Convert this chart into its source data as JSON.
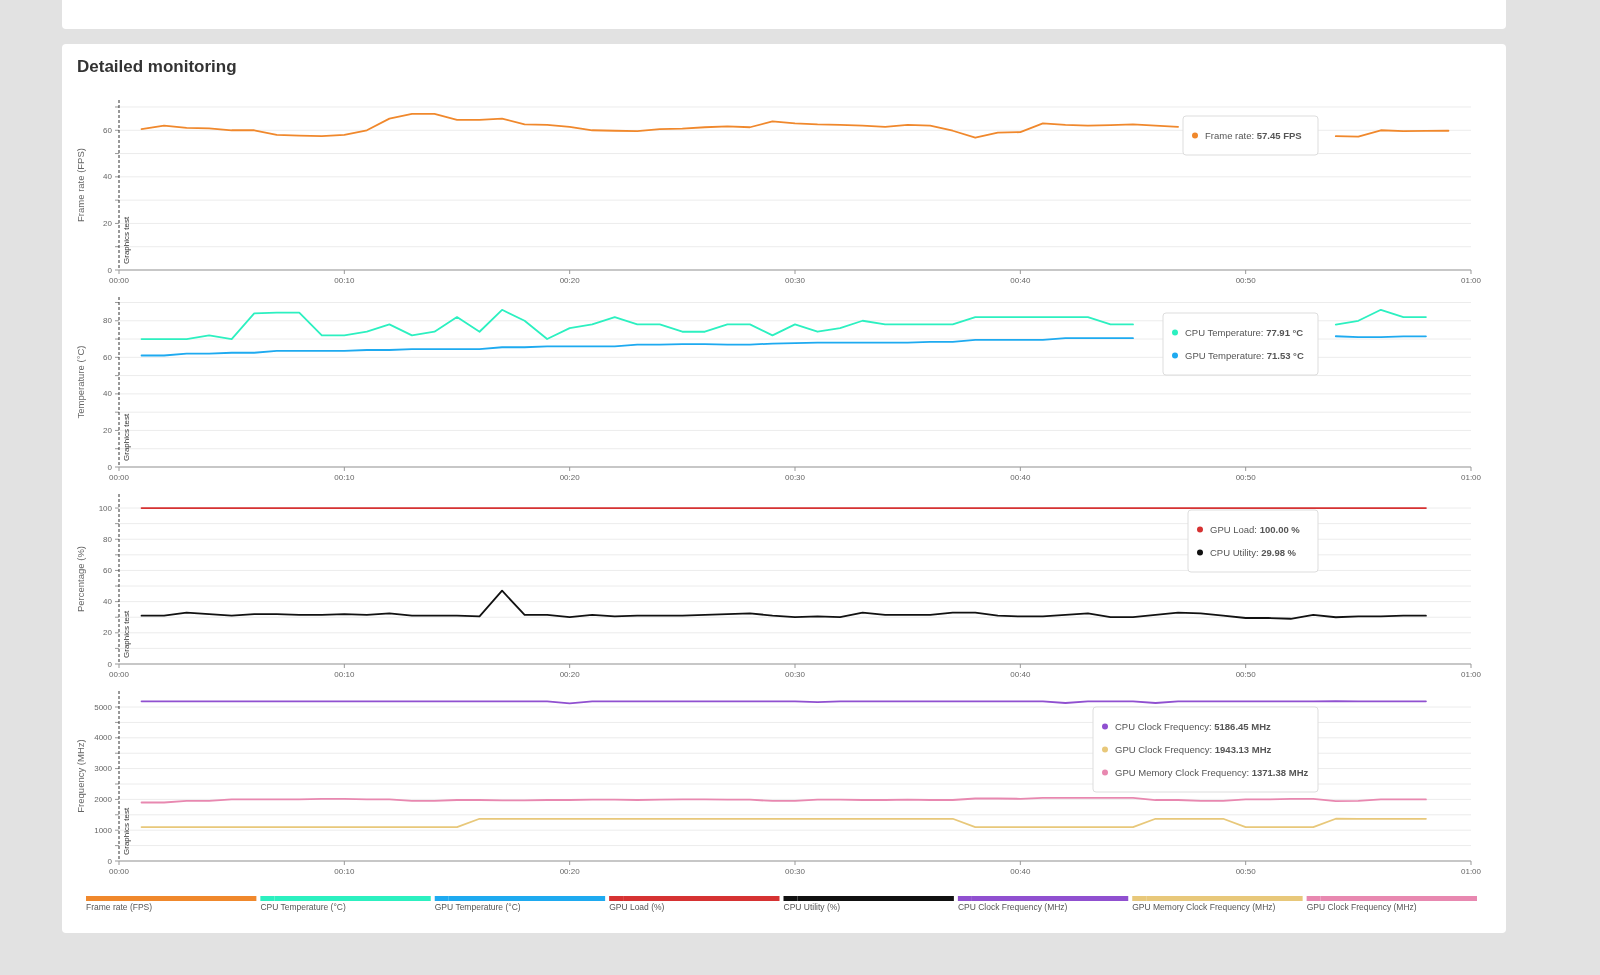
{
  "chart_data": [
    {
      "type": "line",
      "title": "Detailed monitoring",
      "ylabel": "Frame rate (FPS)",
      "xlim": [
        0,
        60
      ],
      "ylim": [
        0,
        73
      ],
      "grid": "y",
      "legend": "bottom",
      "line_style": "solid",
      "xticks": [
        {
          "value": 0,
          "label": "00:00"
        },
        {
          "value": 10,
          "label": "00:10"
        },
        {
          "value": 20,
          "label": "00:20"
        },
        {
          "value": 30,
          "label": "00:30"
        },
        {
          "value": 40,
          "label": "00:40"
        },
        {
          "value": 50,
          "label": "00:50"
        },
        {
          "value": 60,
          "label": "01:00"
        }
      ],
      "yticks": [
        0,
        {
          "value": 10,
          "label": null
        },
        20,
        {
          "value": 30,
          "label": null
        },
        40,
        {
          "value": 50,
          "label": null
        },
        60,
        {
          "value": 70,
          "label": null
        }
      ],
      "x": [
        1,
        2,
        3,
        4,
        5,
        6,
        7,
        8,
        9,
        10,
        11,
        12,
        13,
        14,
        15,
        16,
        17,
        18,
        19,
        20,
        21,
        22,
        23,
        24,
        25,
        26,
        27,
        28,
        29,
        30,
        31,
        32,
        33,
        34,
        35,
        36,
        37,
        38,
        39,
        40,
        41,
        42,
        43,
        44,
        45,
        46,
        47,
        48,
        49,
        50,
        51,
        52,
        53,
        54,
        55,
        56,
        57,
        58,
        59
      ],
      "ref_lines": [
        {
          "axis": "x",
          "value": 0,
          "label": "Graphics test",
          "line_style": "dashed",
          "color": "#333333"
        }
      ],
      "annotations": [
        "Frame rate: 57.45 FPS"
      ],
      "series": [
        {
          "name": "Frame rate (FPS)",
          "color": "#f0882c",
          "values": [
            60.5,
            62,
            61,
            60.8,
            60,
            60,
            58,
            57.7,
            57.5,
            58,
            60,
            65,
            67,
            67,
            64.5,
            64.5,
            65,
            62.5,
            62.3,
            61.5,
            60,
            59.8,
            59.6,
            60.5,
            60.7,
            61.3,
            61.7,
            61.3,
            63.8,
            63,
            62.5,
            62.3,
            62,
            61.5,
            62.3,
            62,
            59.8,
            56.8,
            59,
            59.2,
            63,
            62.3,
            62,
            62.2,
            62.5,
            62,
            61.5,
            null,
            null,
            null,
            null,
            null,
            null,
            57.45,
            57.3,
            60,
            59.6,
            59.7,
            59.8
          ]
        }
      ]
    },
    {
      "type": "line",
      "ylabel": "Temperature (°C)",
      "xlim": [
        0,
        60
      ],
      "ylim": [
        0,
        93
      ],
      "grid": "y",
      "legend": "bottom",
      "line_style": "solid",
      "xticks": [
        {
          "value": 0,
          "label": "00:00"
        },
        {
          "value": 10,
          "label": "00:10"
        },
        {
          "value": 20,
          "label": "00:20"
        },
        {
          "value": 30,
          "label": "00:30"
        },
        {
          "value": 40,
          "label": "00:40"
        },
        {
          "value": 50,
          "label": "00:50"
        },
        {
          "value": 60,
          "label": "01:00"
        }
      ],
      "yticks": [
        0,
        {
          "value": 10,
          "label": null
        },
        20,
        {
          "value": 30,
          "label": null
        },
        40,
        {
          "value": 50,
          "label": null
        },
        60,
        {
          "value": 70,
          "label": null
        },
        80,
        {
          "value": 90,
          "label": null
        }
      ],
      "x": [
        1,
        2,
        3,
        4,
        5,
        6,
        7,
        8,
        9,
        10,
        11,
        12,
        13,
        14,
        15,
        16,
        17,
        18,
        19,
        20,
        21,
        22,
        23,
        24,
        25,
        26,
        27,
        28,
        29,
        30,
        31,
        32,
        33,
        34,
        35,
        36,
        37,
        38,
        39,
        40,
        41,
        42,
        43,
        44,
        45,
        46,
        47,
        48,
        49,
        50,
        51,
        52,
        53,
        54,
        55,
        56,
        57,
        58
      ],
      "ref_lines": [
        {
          "axis": "x",
          "value": 0,
          "label": "Graphics test",
          "line_style": "dashed",
          "color": "#333333"
        }
      ],
      "annotations": [
        "CPU Temperature: 77.91 °C",
        "GPU Temperature: 71.53 °C"
      ],
      "series": [
        {
          "name": "CPU Temperature (°C)",
          "color": "#2cf0c0",
          "values": [
            70,
            70,
            70,
            72,
            70,
            84,
            84.5,
            84.5,
            72,
            72,
            74,
            78,
            72,
            74,
            82,
            74,
            86,
            80,
            70,
            76,
            78,
            82,
            78,
            78,
            74,
            74,
            78,
            78,
            72,
            78,
            74,
            76,
            80,
            78,
            78,
            78,
            78,
            82,
            82,
            82,
            82,
            82,
            82,
            78,
            78,
            null,
            null,
            null,
            null,
            null,
            null,
            null,
            null,
            77.91,
            80,
            86,
            82,
            82
          ]
        },
        {
          "name": "GPU Temperature (°C)",
          "color": "#1eaaf0",
          "values": [
            61,
            61,
            62,
            62,
            62.5,
            62.5,
            63.5,
            63.5,
            63.5,
            63.5,
            64,
            64,
            64.5,
            64.5,
            64.5,
            64.5,
            65.5,
            65.5,
            66,
            66,
            66,
            66,
            67,
            67,
            67.2,
            67.2,
            67,
            67,
            67.5,
            67.8,
            68,
            68,
            68,
            68,
            68,
            68.5,
            68.5,
            69.5,
            69.5,
            69.5,
            69.5,
            70.5,
            70.5,
            70.5,
            70.5,
            null,
            null,
            null,
            null,
            null,
            null,
            null,
            null,
            71.53,
            71,
            71,
            71.5,
            71.5
          ]
        }
      ]
    },
    {
      "type": "line",
      "ylabel": "Percentage (%)",
      "xlim": [
        0,
        60
      ],
      "ylim": [
        0,
        109
      ],
      "grid": "y",
      "legend": "bottom",
      "line_style": "solid",
      "xticks": [
        {
          "value": 0,
          "label": "00:00"
        },
        {
          "value": 10,
          "label": "00:10"
        },
        {
          "value": 20,
          "label": "00:20"
        },
        {
          "value": 30,
          "label": "00:30"
        },
        {
          "value": 40,
          "label": "00:40"
        },
        {
          "value": 50,
          "label": "00:50"
        },
        {
          "value": 60,
          "label": "01:00"
        }
      ],
      "yticks": [
        0,
        {
          "value": 10,
          "label": null
        },
        20,
        {
          "value": 30,
          "label": null
        },
        40,
        {
          "value": 50,
          "label": null
        },
        60,
        {
          "value": 70,
          "label": null
        },
        80,
        {
          "value": 90,
          "label": null
        },
        100
      ],
      "x": [
        1,
        2,
        3,
        4,
        5,
        6,
        7,
        8,
        9,
        10,
        11,
        12,
        13,
        14,
        15,
        16,
        17,
        18,
        19,
        20,
        21,
        22,
        23,
        24,
        25,
        26,
        27,
        28,
        29,
        30,
        31,
        32,
        33,
        34,
        35,
        36,
        37,
        38,
        39,
        40,
        41,
        42,
        43,
        44,
        45,
        46,
        47,
        48,
        49,
        50,
        51,
        52,
        53,
        54,
        55,
        56,
        57,
        58
      ],
      "ref_lines": [
        {
          "axis": "x",
          "value": 0,
          "label": "Graphics test",
          "line_style": "dashed",
          "color": "#333333"
        }
      ],
      "annotations": [
        "GPU Load: 100.00 %",
        "CPU Utility: 29.98 %"
      ],
      "series": [
        {
          "name": "GPU Load (%)",
          "color": "#d63232",
          "values": [
            100,
            100,
            100,
            100,
            100,
            100,
            100,
            100,
            100,
            100,
            100,
            100,
            100,
            100,
            100,
            100,
            100,
            100,
            100,
            100,
            100,
            100,
            100,
            100,
            100,
            100,
            100,
            100,
            100,
            100,
            100,
            100,
            100,
            100,
            100,
            100,
            100,
            100,
            100,
            100,
            100,
            100,
            100,
            100,
            100,
            100,
            100,
            100,
            100,
            100,
            100,
            100,
            100,
            100,
            100,
            100,
            100,
            100
          ]
        },
        {
          "name": "CPU Utility (%)",
          "color": "#111111",
          "values": [
            31,
            31,
            33,
            32,
            31,
            32,
            32,
            31.5,
            31.5,
            32,
            31.5,
            32.5,
            31,
            31,
            31,
            30.5,
            47,
            31.5,
            31.5,
            30,
            31.5,
            30.5,
            31,
            31,
            31,
            31.5,
            32,
            32.5,
            31,
            30,
            30.5,
            30,
            33,
            31.5,
            31.5,
            31.5,
            33,
            33,
            31,
            30.5,
            30.5,
            31.5,
            32.5,
            30,
            30,
            31.5,
            33,
            32.5,
            31,
            29.5,
            29.5,
            29,
            31.5,
            29.98,
            30.5,
            30.5,
            31,
            31
          ]
        }
      ]
    },
    {
      "type": "line",
      "ylabel": "Frequency (MHz)",
      "xlim": [
        0,
        60
      ],
      "ylim": [
        0,
        5520
      ],
      "grid": "y",
      "legend": "bottom",
      "line_style": "solid",
      "xticks": [
        {
          "value": 0,
          "label": "00:00"
        },
        {
          "value": 10,
          "label": "00:10"
        },
        {
          "value": 20,
          "label": "00:20"
        },
        {
          "value": 30,
          "label": "00:30"
        },
        {
          "value": 40,
          "label": "00:40"
        },
        {
          "value": 50,
          "label": "00:50"
        },
        {
          "value": 60,
          "label": "01:00"
        }
      ],
      "yticks": [
        0,
        {
          "value": 500,
          "label": null
        },
        1000,
        {
          "value": 1500,
          "label": null
        },
        2000,
        {
          "value": 2500,
          "label": null
        },
        3000,
        {
          "value": 3500,
          "label": null
        },
        4000,
        {
          "value": 4500,
          "label": null
        },
        5000
      ],
      "x": [
        1,
        2,
        3,
        4,
        5,
        6,
        7,
        8,
        9,
        10,
        11,
        12,
        13,
        14,
        15,
        16,
        17,
        18,
        19,
        20,
        21,
        22,
        23,
        24,
        25,
        26,
        27,
        28,
        29,
        30,
        31,
        32,
        33,
        34,
        35,
        36,
        37,
        38,
        39,
        40,
        41,
        42,
        43,
        44,
        45,
        46,
        47,
        48,
        49,
        50,
        51,
        52,
        53,
        54,
        55,
        56,
        57,
        58
      ],
      "ref_lines": [
        {
          "axis": "x",
          "value": 0,
          "label": "Graphics test",
          "line_style": "dashed",
          "color": "#333333"
        }
      ],
      "annotations": [
        "CPU Clock Frequency: 5186.45 MHz",
        "GPU Clock Frequency: 1943.13 MHz",
        "GPU Memory Clock Frequency: 1371.38 MHz"
      ],
      "series": [
        {
          "name": "CPU Clock Frequency (MHz)",
          "color": "#9050d0",
          "values": [
            5186,
            5186,
            5186,
            5186,
            5186,
            5186,
            5186,
            5186,
            5186,
            5186,
            5186,
            5186,
            5186,
            5186,
            5186,
            5186,
            5186,
            5186,
            5186,
            5120,
            5186,
            5186,
            5186,
            5186,
            5186,
            5186,
            5186,
            5186,
            5186,
            5186,
            5160,
            5186,
            5186,
            5186,
            5186,
            5186,
            5186,
            5186,
            5186,
            5186,
            5186,
            5130,
            5186,
            5186,
            5186,
            5130,
            5186,
            5186,
            5186,
            5186,
            5186,
            5186,
            5186,
            5186.45,
            5186,
            5186,
            5186,
            5186
          ]
        },
        {
          "name": "GPU Memory Clock Frequency (MHz)",
          "color": "#e8c87a",
          "values": [
            1100,
            1100,
            1100,
            1100,
            1100,
            1100,
            1100,
            1100,
            1100,
            1100,
            1100,
            1100,
            1100,
            1100,
            1100,
            1371,
            1371,
            1371,
            1371,
            1371,
            1371,
            1371,
            1371,
            1371,
            1371,
            1371,
            1371,
            1371,
            1371,
            1371,
            1371,
            1371,
            1371,
            1371,
            1371,
            1371,
            1371,
            1100,
            1100,
            1100,
            1100,
            1100,
            1100,
            1100,
            1100,
            1371,
            1371,
            1371,
            1371,
            1100,
            1100,
            1100,
            1100,
            1371.38,
            1371,
            1371,
            1371,
            1371
          ]
        },
        {
          "name": "GPU Clock Frequency (MHz)",
          "color": "#e888b0",
          "values": [
            1900,
            1900,
            1950,
            1950,
            2000,
            2000,
            2000,
            2000,
            2020,
            2020,
            2000,
            2000,
            1950,
            1950,
            1980,
            1980,
            1970,
            1970,
            1980,
            1980,
            1990,
            1990,
            1980,
            1990,
            2000,
            2000,
            1990,
            1990,
            1950,
            1950,
            1990,
            1990,
            1980,
            1980,
            1990,
            1980,
            1980,
            2030,
            2030,
            2020,
            2050,
            2050,
            2050,
            2050,
            2050,
            1980,
            1980,
            1950,
            1950,
            2000,
            2000,
            2020,
            2020,
            1943.13,
            1950,
            2000,
            2000,
            2000
          ]
        }
      ]
    }
  ]
}
